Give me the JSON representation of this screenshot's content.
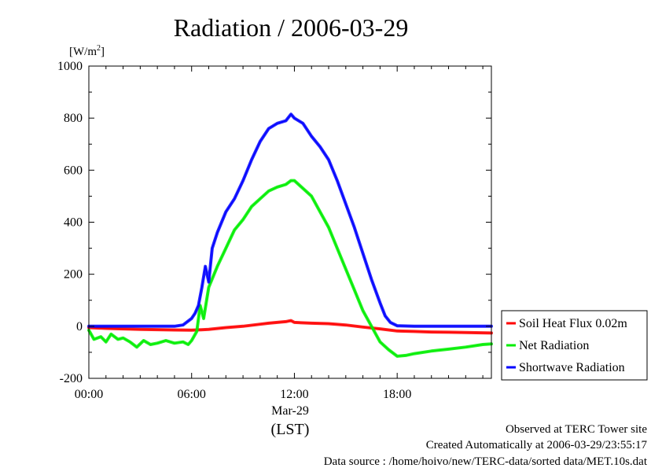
{
  "chart_data": {
    "type": "line",
    "title": "Radiation / 2006-03-29",
    "unit_label": "[W/m²]",
    "unit_base": "[W/m",
    "unit_sup": "2",
    "unit_close": "]",
    "x_tick_labels": [
      "00:00",
      "06:00",
      "12:00",
      "18:00"
    ],
    "x_ticks_hours": [
      0,
      6,
      12,
      18
    ],
    "x_date_label": "Mar-29",
    "x_axis_label": "(LST)",
    "x_range_hours": [
      0,
      23.5
    ],
    "ylim": [
      -200,
      1000
    ],
    "y_ticks": [
      -200,
      0,
      200,
      400,
      600,
      800,
      1000
    ],
    "grid": false,
    "legend_position": "right-middle",
    "series": [
      {
        "name": "Soil Heat Flux 0.02m",
        "color": "#ff0000",
        "x": [
          0,
          1,
          2,
          3,
          4,
          5,
          6,
          7,
          8,
          9,
          10,
          10.5,
          11,
          11.5,
          11.8,
          12,
          13,
          14,
          15,
          16,
          17,
          18,
          19,
          20,
          21,
          22,
          23.5
        ],
        "y": [
          -5,
          -8,
          -10,
          -12,
          -13,
          -14,
          -15,
          -12,
          -5,
          0,
          8,
          12,
          15,
          18,
          22,
          15,
          12,
          10,
          5,
          -3,
          -10,
          -18,
          -20,
          -22,
          -23,
          -24,
          -26
        ]
      },
      {
        "name": "Net Radiation",
        "color": "#00ee00",
        "x": [
          0,
          0.3,
          0.7,
          1.0,
          1.3,
          1.7,
          2.0,
          2.4,
          2.8,
          3.2,
          3.6,
          4.0,
          4.5,
          5.0,
          5.5,
          5.8,
          6.0,
          6.3,
          6.5,
          6.7,
          7.0,
          7.5,
          8.0,
          8.5,
          9.0,
          9.5,
          10.0,
          10.5,
          11.0,
          11.5,
          11.8,
          12.0,
          12.5,
          13.0,
          13.5,
          14.0,
          14.5,
          15.0,
          15.5,
          16.0,
          16.5,
          17.0,
          17.5,
          18.0,
          18.5,
          19.0,
          20.0,
          21.0,
          22.0,
          23.0,
          23.5
        ],
        "y": [
          -15,
          -50,
          -40,
          -60,
          -30,
          -50,
          -45,
          -60,
          -80,
          -55,
          -70,
          -65,
          -55,
          -65,
          -60,
          -70,
          -55,
          -20,
          80,
          30,
          150,
          230,
          300,
          370,
          410,
          460,
          490,
          520,
          535,
          545,
          560,
          560,
          530,
          500,
          440,
          380,
          300,
          220,
          140,
          60,
          0,
          -60,
          -90,
          -115,
          -112,
          -105,
          -95,
          -88,
          -80,
          -70,
          -68
        ]
      },
      {
        "name": "Shortwave Radiation",
        "color": "#0000ff",
        "x": [
          0,
          1,
          2,
          3,
          4,
          5,
          5.5,
          6.0,
          6.2,
          6.4,
          6.6,
          6.8,
          7.0,
          7.2,
          7.5,
          8.0,
          8.5,
          9.0,
          9.5,
          10.0,
          10.5,
          11.0,
          11.5,
          11.8,
          12.0,
          12.5,
          13.0,
          13.5,
          14.0,
          14.5,
          15.0,
          15.5,
          16.0,
          16.5,
          17.0,
          17.3,
          17.6,
          18.0,
          19.0,
          20.0,
          21.0,
          22.0,
          23.0,
          23.5
        ],
        "y": [
          0,
          0,
          0,
          0,
          0,
          0,
          5,
          30,
          50,
          80,
          150,
          230,
          170,
          300,
          360,
          440,
          490,
          560,
          640,
          710,
          760,
          780,
          790,
          815,
          800,
          780,
          730,
          690,
          640,
          560,
          470,
          380,
          280,
          180,
          90,
          40,
          15,
          2,
          0,
          0,
          0,
          0,
          0,
          0
        ]
      }
    ]
  },
  "footer": {
    "line1": "Observed at TERC Tower site",
    "line2": "Created Automatically at 2006-03-29/23:55:17",
    "line3": "Data source : /home/hoivo/new/TERC-data/sorted  data/MET.10s.dat"
  },
  "colors": {
    "frame": "#000000",
    "background": "#ffffff"
  }
}
